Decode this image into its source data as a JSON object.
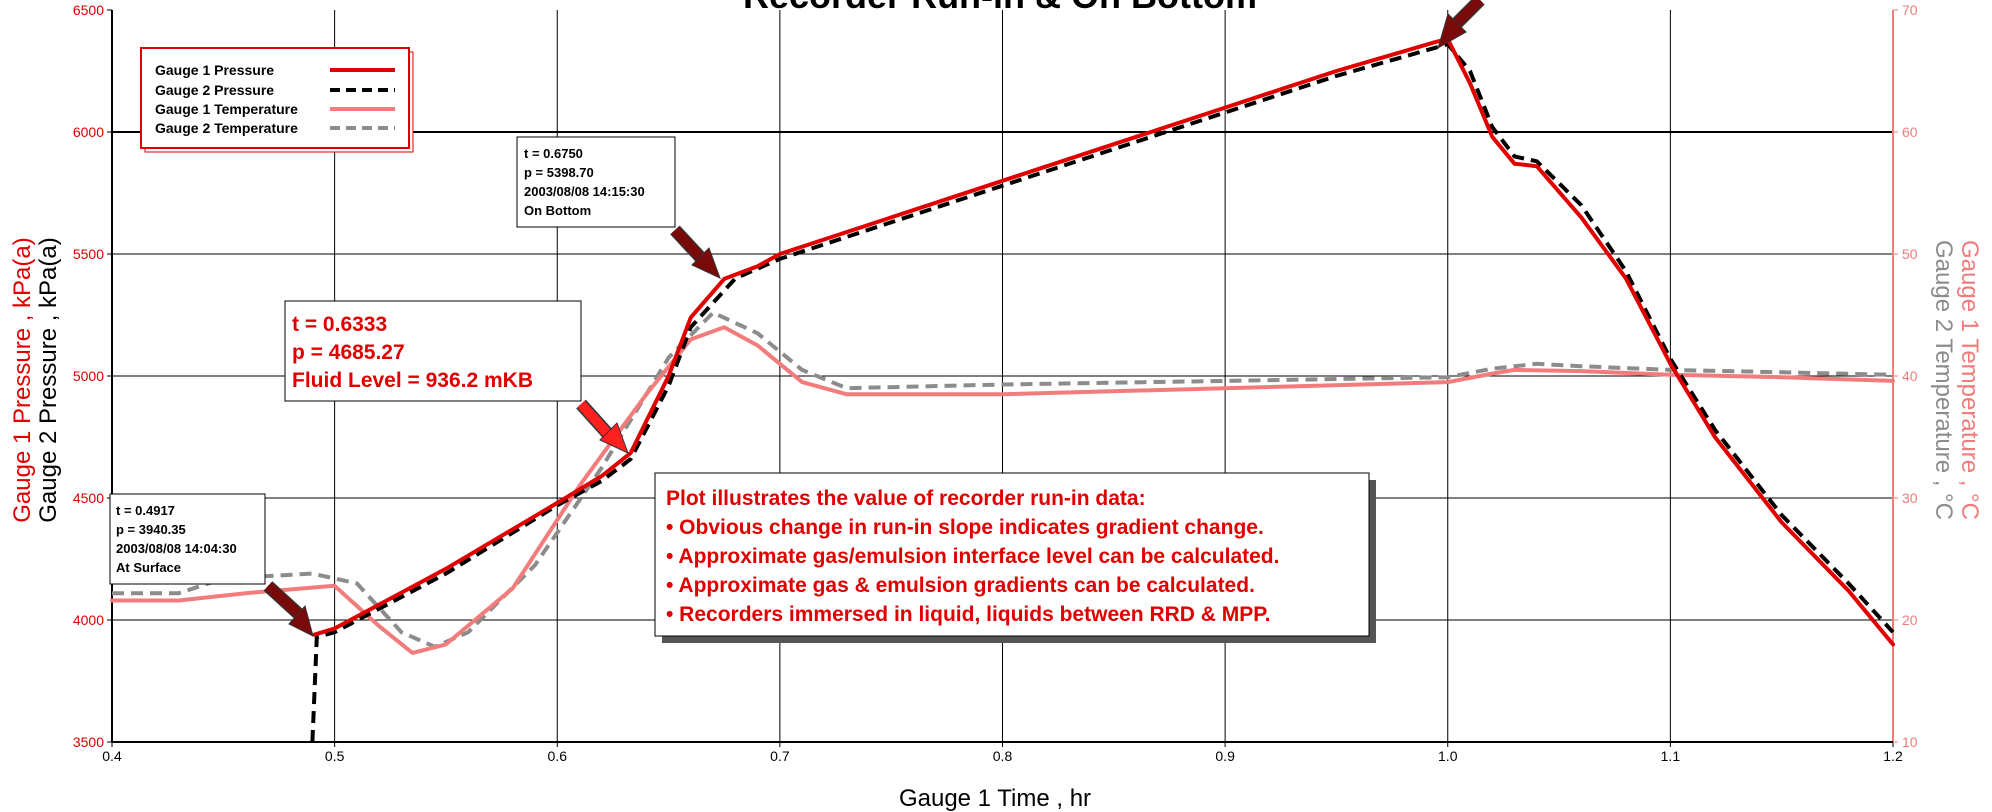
{
  "chart_data": {
    "type": "line",
    "title": "Recorder Run-in & On Bottom",
    "xlabel": "Gauge 1 Time , hr",
    "ylabel_left_1": "Gauge 1 Pressure , kPa(a)",
    "ylabel_left_2": "Gauge 2 Pressure , kPa(a)",
    "ylabel_right_1": "Gauge 1 Temperature , °C",
    "ylabel_right_2": "Gauge 2 Temperature , °C",
    "xlim": [
      0.4,
      1.2
    ],
    "ylim_left": [
      3500,
      6500
    ],
    "ylim_right": [
      10,
      70
    ],
    "x_ticks": [
      "0.4",
      "0.5",
      "0.6",
      "0.7",
      "0.8",
      "0.9",
      "1.0",
      "1.1",
      "1.2"
    ],
    "y_left_ticks": [
      "3500",
      "4000",
      "4500",
      "5000",
      "5500",
      "6000",
      "6500"
    ],
    "y_right_ticks": [
      "10",
      "20",
      "30",
      "40",
      "50",
      "60",
      "70"
    ],
    "grid": true,
    "legend_position": "top-left",
    "colors": {
      "gauge1_pressure": "#e00000",
      "gauge2_pressure": "#000000",
      "gauge1_temperature": "#f27c7c",
      "gauge2_temperature": "#8c8c8c",
      "arrow_dark": "#7a0a0a",
      "arrow_bright": "#ff2020"
    },
    "series": [
      {
        "name": "Gauge 1 Pressure",
        "axis": "left",
        "style": "solid",
        "points": [
          [
            0.491,
            3940
          ],
          [
            0.5,
            3965
          ],
          [
            0.55,
            4210
          ],
          [
            0.6,
            4480
          ],
          [
            0.62,
            4590
          ],
          [
            0.633,
            4685
          ],
          [
            0.65,
            5000
          ],
          [
            0.66,
            5240
          ],
          [
            0.675,
            5398
          ],
          [
            0.69,
            5450
          ],
          [
            0.7,
            5500
          ],
          [
            0.75,
            5650
          ],
          [
            0.8,
            5800
          ],
          [
            0.85,
            5950
          ],
          [
            0.9,
            6100
          ],
          [
            0.95,
            6250
          ],
          [
            0.995,
            6370
          ],
          [
            1.0,
            6380
          ],
          [
            1.01,
            6200
          ],
          [
            1.02,
            5980
          ],
          [
            1.03,
            5870
          ],
          [
            1.04,
            5860
          ],
          [
            1.06,
            5650
          ],
          [
            1.08,
            5400
          ],
          [
            1.1,
            5050
          ],
          [
            1.12,
            4750
          ],
          [
            1.15,
            4400
          ],
          [
            1.18,
            4120
          ],
          [
            1.2,
            3900
          ]
        ]
      },
      {
        "name": "Gauge 2 Pressure",
        "axis": "left",
        "style": "dashed",
        "points": [
          [
            0.49,
            3500
          ],
          [
            0.492,
            3930
          ],
          [
            0.5,
            3950
          ],
          [
            0.55,
            4190
          ],
          [
            0.6,
            4470
          ],
          [
            0.62,
            4570
          ],
          [
            0.633,
            4660
          ],
          [
            0.65,
            4960
          ],
          [
            0.66,
            5200
          ],
          [
            0.68,
            5400
          ],
          [
            0.7,
            5480
          ],
          [
            0.75,
            5630
          ],
          [
            0.8,
            5780
          ],
          [
            0.85,
            5930
          ],
          [
            0.9,
            6080
          ],
          [
            0.95,
            6230
          ],
          [
            1.0,
            6360
          ],
          [
            1.01,
            6250
          ],
          [
            1.02,
            6020
          ],
          [
            1.03,
            5900
          ],
          [
            1.04,
            5880
          ],
          [
            1.06,
            5700
          ],
          [
            1.08,
            5430
          ],
          [
            1.1,
            5070
          ],
          [
            1.12,
            4780
          ],
          [
            1.15,
            4430
          ],
          [
            1.18,
            4150
          ],
          [
            1.2,
            3950
          ]
        ]
      },
      {
        "name": "Gauge 1 Temperature",
        "axis": "right",
        "style": "solid",
        "points": [
          [
            0.4,
            21.6
          ],
          [
            0.43,
            21.6
          ],
          [
            0.46,
            22.2
          ],
          [
            0.5,
            22.8
          ],
          [
            0.52,
            19.5
          ],
          [
            0.535,
            17.3
          ],
          [
            0.55,
            18.0
          ],
          [
            0.58,
            22.6
          ],
          [
            0.61,
            31.0
          ],
          [
            0.64,
            38.5
          ],
          [
            0.66,
            43.0
          ],
          [
            0.675,
            44.0
          ],
          [
            0.69,
            42.5
          ],
          [
            0.71,
            39.5
          ],
          [
            0.73,
            38.5
          ],
          [
            0.8,
            38.5
          ],
          [
            0.9,
            39.0
          ],
          [
            1.0,
            39.5
          ],
          [
            1.02,
            40.2
          ],
          [
            1.03,
            40.5
          ],
          [
            1.06,
            40.4
          ],
          [
            1.1,
            40.1
          ],
          [
            1.15,
            39.9
          ],
          [
            1.2,
            39.6
          ]
        ]
      },
      {
        "name": "Gauge 2 Temperature",
        "axis": "right",
        "style": "dashed",
        "points": [
          [
            0.4,
            22.2
          ],
          [
            0.43,
            22.2
          ],
          [
            0.45,
            23.4
          ],
          [
            0.49,
            23.8
          ],
          [
            0.51,
            23.0
          ],
          [
            0.53,
            19.0
          ],
          [
            0.545,
            17.8
          ],
          [
            0.56,
            19.0
          ],
          [
            0.59,
            24.5
          ],
          [
            0.62,
            32.5
          ],
          [
            0.65,
            41.5
          ],
          [
            0.67,
            45.2
          ],
          [
            0.69,
            43.5
          ],
          [
            0.71,
            40.5
          ],
          [
            0.73,
            39.0
          ],
          [
            0.8,
            39.3
          ],
          [
            0.9,
            39.6
          ],
          [
            1.0,
            39.9
          ],
          [
            1.02,
            40.6
          ],
          [
            1.04,
            41.0
          ],
          [
            1.06,
            40.8
          ],
          [
            1.1,
            40.5
          ],
          [
            1.15,
            40.3
          ],
          [
            1.2,
            40.1
          ]
        ]
      }
    ],
    "annotations": [
      {
        "lines": [
          "t = 0.4917",
          "p = 3940.35",
          "2003/08/08 14:04:30",
          "At Surface"
        ]
      },
      {
        "lines": [
          "t = 0.6750",
          "p = 5398.70",
          "2003/08/08 14:15:30",
          "On Bottom"
        ]
      },
      {
        "lines": [
          "t = 0.6333",
          "p = 4685.27",
          "Fluid Level = 936.2 mKB"
        ]
      }
    ],
    "note": {
      "lines": [
        "Plot illustrates the value of recorder run-in data:",
        "• Obvious change in run-in slope indicates gradient change.",
        "• Approximate gas/emulsion interface level can be calculated.",
        "• Approximate gas & emulsion gradients can be calculated.",
        "• Recorders immersed in liquid, liquids between RRD & MPP."
      ]
    }
  }
}
